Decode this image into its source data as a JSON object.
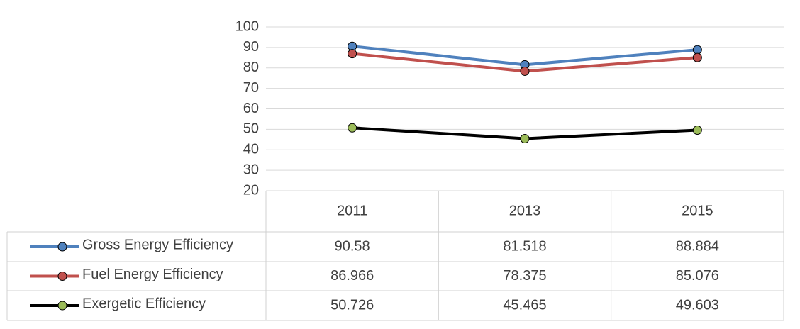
{
  "chart_data": {
    "type": "line",
    "categories": [
      "2011",
      "2013",
      "2015"
    ],
    "series": [
      {
        "name": "Gross Energy Efficiency",
        "color": "#4f81bd",
        "marker_color": "#4f81bd",
        "values": [
          90.58,
          81.518,
          88.884
        ]
      },
      {
        "name": "Fuel Energy Efficiency",
        "color": "#c0504d",
        "marker_color": "#c0504d",
        "values": [
          86.966,
          78.375,
          85.076
        ]
      },
      {
        "name": "Exergetic Efficiency",
        "color": "#000000",
        "marker_color": "#9bbb59",
        "values": [
          50.726,
          45.465,
          49.603
        ]
      }
    ],
    "ylim": [
      20,
      100
    ],
    "yticks": [
      20,
      30,
      40,
      50,
      60,
      70,
      80,
      90,
      100
    ],
    "grid": true,
    "data_table": true
  }
}
